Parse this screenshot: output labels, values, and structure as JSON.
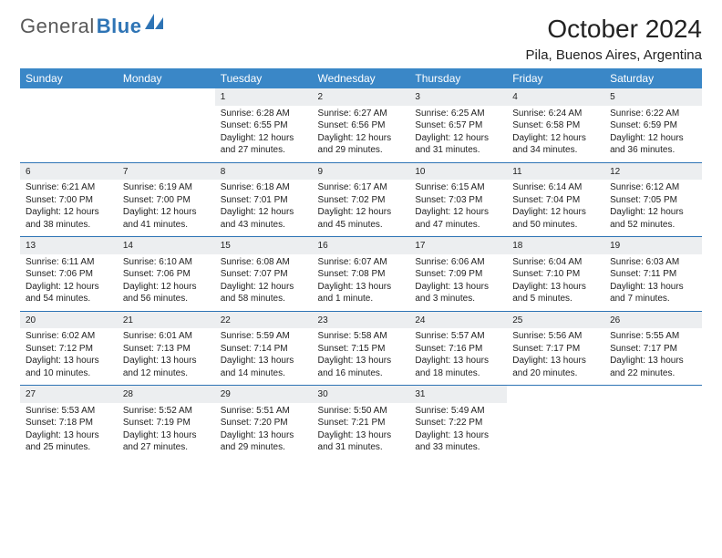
{
  "brand": {
    "name_gray": "General",
    "name_blue": "Blue"
  },
  "title": "October 2024",
  "location": "Pila, Buenos Aires, Argentina",
  "header_bg": "#3a87c7",
  "daynum_bg": "#eceef0",
  "rule_color": "#2e74b5",
  "columns": [
    "Sunday",
    "Monday",
    "Tuesday",
    "Wednesday",
    "Thursday",
    "Friday",
    "Saturday"
  ],
  "weeks": [
    [
      null,
      null,
      {
        "n": "1",
        "sr": "Sunrise: 6:28 AM",
        "ss": "Sunset: 6:55 PM",
        "dl1": "Daylight: 12 hours",
        "dl2": "and 27 minutes."
      },
      {
        "n": "2",
        "sr": "Sunrise: 6:27 AM",
        "ss": "Sunset: 6:56 PM",
        "dl1": "Daylight: 12 hours",
        "dl2": "and 29 minutes."
      },
      {
        "n": "3",
        "sr": "Sunrise: 6:25 AM",
        "ss": "Sunset: 6:57 PM",
        "dl1": "Daylight: 12 hours",
        "dl2": "and 31 minutes."
      },
      {
        "n": "4",
        "sr": "Sunrise: 6:24 AM",
        "ss": "Sunset: 6:58 PM",
        "dl1": "Daylight: 12 hours",
        "dl2": "and 34 minutes."
      },
      {
        "n": "5",
        "sr": "Sunrise: 6:22 AM",
        "ss": "Sunset: 6:59 PM",
        "dl1": "Daylight: 12 hours",
        "dl2": "and 36 minutes."
      }
    ],
    [
      {
        "n": "6",
        "sr": "Sunrise: 6:21 AM",
        "ss": "Sunset: 7:00 PM",
        "dl1": "Daylight: 12 hours",
        "dl2": "and 38 minutes."
      },
      {
        "n": "7",
        "sr": "Sunrise: 6:19 AM",
        "ss": "Sunset: 7:00 PM",
        "dl1": "Daylight: 12 hours",
        "dl2": "and 41 minutes."
      },
      {
        "n": "8",
        "sr": "Sunrise: 6:18 AM",
        "ss": "Sunset: 7:01 PM",
        "dl1": "Daylight: 12 hours",
        "dl2": "and 43 minutes."
      },
      {
        "n": "9",
        "sr": "Sunrise: 6:17 AM",
        "ss": "Sunset: 7:02 PM",
        "dl1": "Daylight: 12 hours",
        "dl2": "and 45 minutes."
      },
      {
        "n": "10",
        "sr": "Sunrise: 6:15 AM",
        "ss": "Sunset: 7:03 PM",
        "dl1": "Daylight: 12 hours",
        "dl2": "and 47 minutes."
      },
      {
        "n": "11",
        "sr": "Sunrise: 6:14 AM",
        "ss": "Sunset: 7:04 PM",
        "dl1": "Daylight: 12 hours",
        "dl2": "and 50 minutes."
      },
      {
        "n": "12",
        "sr": "Sunrise: 6:12 AM",
        "ss": "Sunset: 7:05 PM",
        "dl1": "Daylight: 12 hours",
        "dl2": "and 52 minutes."
      }
    ],
    [
      {
        "n": "13",
        "sr": "Sunrise: 6:11 AM",
        "ss": "Sunset: 7:06 PM",
        "dl1": "Daylight: 12 hours",
        "dl2": "and 54 minutes."
      },
      {
        "n": "14",
        "sr": "Sunrise: 6:10 AM",
        "ss": "Sunset: 7:06 PM",
        "dl1": "Daylight: 12 hours",
        "dl2": "and 56 minutes."
      },
      {
        "n": "15",
        "sr": "Sunrise: 6:08 AM",
        "ss": "Sunset: 7:07 PM",
        "dl1": "Daylight: 12 hours",
        "dl2": "and 58 minutes."
      },
      {
        "n": "16",
        "sr": "Sunrise: 6:07 AM",
        "ss": "Sunset: 7:08 PM",
        "dl1": "Daylight: 13 hours",
        "dl2": "and 1 minute."
      },
      {
        "n": "17",
        "sr": "Sunrise: 6:06 AM",
        "ss": "Sunset: 7:09 PM",
        "dl1": "Daylight: 13 hours",
        "dl2": "and 3 minutes."
      },
      {
        "n": "18",
        "sr": "Sunrise: 6:04 AM",
        "ss": "Sunset: 7:10 PM",
        "dl1": "Daylight: 13 hours",
        "dl2": "and 5 minutes."
      },
      {
        "n": "19",
        "sr": "Sunrise: 6:03 AM",
        "ss": "Sunset: 7:11 PM",
        "dl1": "Daylight: 13 hours",
        "dl2": "and 7 minutes."
      }
    ],
    [
      {
        "n": "20",
        "sr": "Sunrise: 6:02 AM",
        "ss": "Sunset: 7:12 PM",
        "dl1": "Daylight: 13 hours",
        "dl2": "and 10 minutes."
      },
      {
        "n": "21",
        "sr": "Sunrise: 6:01 AM",
        "ss": "Sunset: 7:13 PM",
        "dl1": "Daylight: 13 hours",
        "dl2": "and 12 minutes."
      },
      {
        "n": "22",
        "sr": "Sunrise: 5:59 AM",
        "ss": "Sunset: 7:14 PM",
        "dl1": "Daylight: 13 hours",
        "dl2": "and 14 minutes."
      },
      {
        "n": "23",
        "sr": "Sunrise: 5:58 AM",
        "ss": "Sunset: 7:15 PM",
        "dl1": "Daylight: 13 hours",
        "dl2": "and 16 minutes."
      },
      {
        "n": "24",
        "sr": "Sunrise: 5:57 AM",
        "ss": "Sunset: 7:16 PM",
        "dl1": "Daylight: 13 hours",
        "dl2": "and 18 minutes."
      },
      {
        "n": "25",
        "sr": "Sunrise: 5:56 AM",
        "ss": "Sunset: 7:17 PM",
        "dl1": "Daylight: 13 hours",
        "dl2": "and 20 minutes."
      },
      {
        "n": "26",
        "sr": "Sunrise: 5:55 AM",
        "ss": "Sunset: 7:17 PM",
        "dl1": "Daylight: 13 hours",
        "dl2": "and 22 minutes."
      }
    ],
    [
      {
        "n": "27",
        "sr": "Sunrise: 5:53 AM",
        "ss": "Sunset: 7:18 PM",
        "dl1": "Daylight: 13 hours",
        "dl2": "and 25 minutes."
      },
      {
        "n": "28",
        "sr": "Sunrise: 5:52 AM",
        "ss": "Sunset: 7:19 PM",
        "dl1": "Daylight: 13 hours",
        "dl2": "and 27 minutes."
      },
      {
        "n": "29",
        "sr": "Sunrise: 5:51 AM",
        "ss": "Sunset: 7:20 PM",
        "dl1": "Daylight: 13 hours",
        "dl2": "and 29 minutes."
      },
      {
        "n": "30",
        "sr": "Sunrise: 5:50 AM",
        "ss": "Sunset: 7:21 PM",
        "dl1": "Daylight: 13 hours",
        "dl2": "and 31 minutes."
      },
      {
        "n": "31",
        "sr": "Sunrise: 5:49 AM",
        "ss": "Sunset: 7:22 PM",
        "dl1": "Daylight: 13 hours",
        "dl2": "and 33 minutes."
      },
      null,
      null
    ]
  ]
}
